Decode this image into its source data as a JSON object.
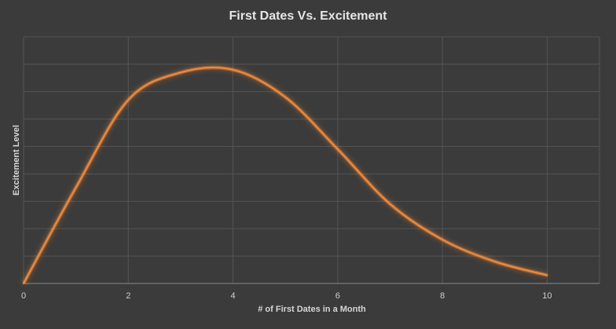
{
  "chart_data": {
    "type": "line",
    "title": "First Dates Vs. Excitement",
    "xlabel": "# of First Dates in a Month",
    "ylabel": "Excitement Level",
    "xlim": [
      0,
      11
    ],
    "ylim": [
      0,
      9
    ],
    "xticks": [
      "0",
      "2",
      "4",
      "6",
      "8",
      "10"
    ],
    "grid": true,
    "smooth": true,
    "series": [
      {
        "color": "#f08a3c",
        "x": [
          0,
          1,
          2,
          3,
          4,
          5,
          6,
          7,
          8,
          9,
          10
        ],
        "y": [
          0,
          3.5,
          6.7,
          7.7,
          7.8,
          6.8,
          4.9,
          2.9,
          1.6,
          0.8,
          0.3
        ]
      }
    ]
  }
}
